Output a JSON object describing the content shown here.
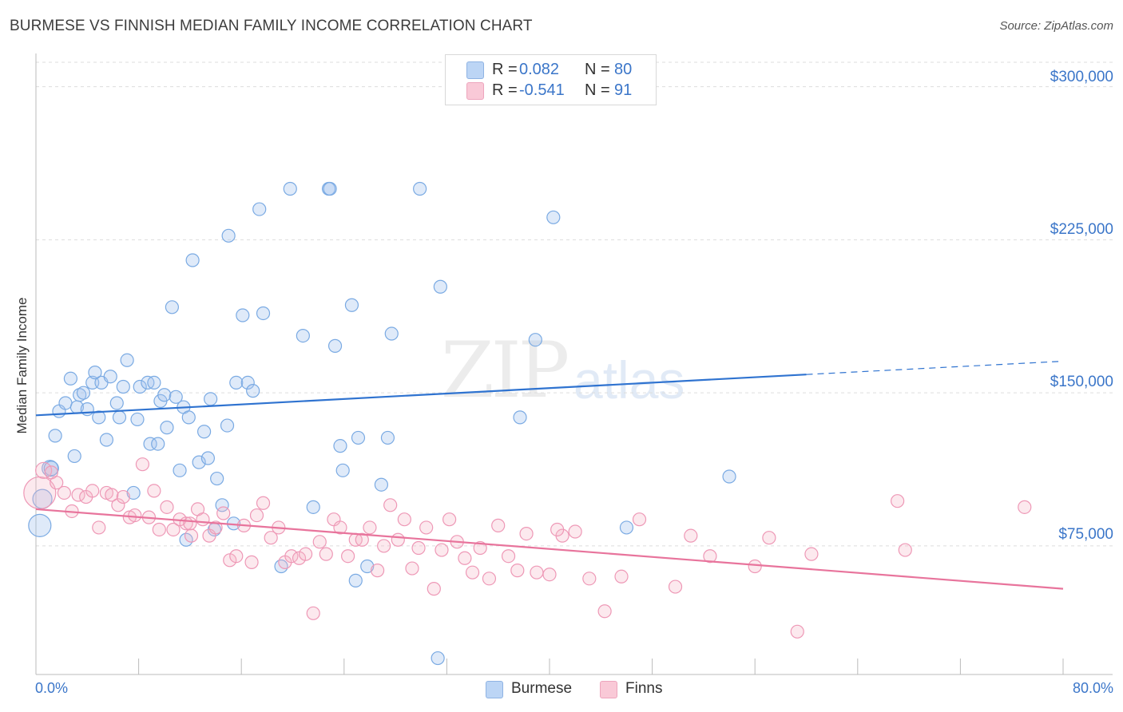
{
  "title": "BURMESE VS FINNISH MEDIAN FAMILY INCOME CORRELATION CHART",
  "source": "Source: ZipAtlas.com",
  "watermark": {
    "zip": "ZIP",
    "atlas": "atlas"
  },
  "legend": {
    "rows": [
      {
        "label": "R =",
        "r": "0.082",
        "n_label": "N =",
        "n": "80",
        "color": "#a9c8f0"
      },
      {
        "label": "R =",
        "r": "-0.541",
        "n_label": "N =",
        "n": "91",
        "color": "#f6b6c8"
      }
    ]
  },
  "bottom_legend": [
    {
      "name": "Burmese",
      "color": "#a9c8f0"
    },
    {
      "name": "Finns",
      "color": "#f6b6c8"
    }
  ],
  "chart_data": {
    "type": "scatter",
    "title": "BURMESE VS FINNISH MEDIAN FAMILY INCOME CORRELATION CHART",
    "xlabel": "",
    "ylabel": "Median Family Income",
    "xlim": [
      0,
      80
    ],
    "ylim": [
      12000,
      312000
    ],
    "x_tick_labels": [
      "0.0%",
      "80.0%"
    ],
    "y_ticks": [
      75000,
      150000,
      225000,
      300000
    ],
    "y_tick_labels": [
      "$75,000",
      "$150,000",
      "$225,000",
      "$300,000"
    ],
    "colors": {
      "burmese": "#6fa3e0",
      "finns": "#ee8fb0",
      "burmese_line": "#2f73d0",
      "finns_line": "#e8749c"
    },
    "series": [
      {
        "name": "Burmese",
        "r": 0.082,
        "n": 80,
        "trend": {
          "x0": 0,
          "y0": 139000,
          "x1": 60,
          "y1": 159000,
          "dash_to_x": 80,
          "dash_to_y": 165500
        },
        "points": [
          [
            0.3,
            85000,
            14
          ],
          [
            0.5,
            98000,
            12
          ],
          [
            1.1,
            113000,
            10
          ],
          [
            1.2,
            113000,
            9
          ],
          [
            1.5,
            129000,
            8
          ],
          [
            1.8,
            141000,
            8
          ],
          [
            2.3,
            145000,
            8
          ],
          [
            2.7,
            157000,
            8
          ],
          [
            3.0,
            119000,
            8
          ],
          [
            3.2,
            143000,
            8
          ],
          [
            3.4,
            149000,
            8
          ],
          [
            3.7,
            150000,
            8
          ],
          [
            4.0,
            142000,
            8
          ],
          [
            4.4,
            155000,
            8
          ],
          [
            4.6,
            160000,
            8
          ],
          [
            4.9,
            138000,
            8
          ],
          [
            5.1,
            155000,
            8
          ],
          [
            5.5,
            127000,
            8
          ],
          [
            5.8,
            158000,
            8
          ],
          [
            6.3,
            145000,
            8
          ],
          [
            6.5,
            138000,
            8
          ],
          [
            6.8,
            153000,
            8
          ],
          [
            7.1,
            166000,
            8
          ],
          [
            7.6,
            101000,
            8
          ],
          [
            7.9,
            137000,
            8
          ],
          [
            8.1,
            153000,
            8
          ],
          [
            8.7,
            155000,
            8
          ],
          [
            8.9,
            125000,
            8
          ],
          [
            9.2,
            155000,
            8
          ],
          [
            9.5,
            125000,
            8
          ],
          [
            9.7,
            146000,
            8
          ],
          [
            10.0,
            149000,
            8
          ],
          [
            10.2,
            133000,
            8
          ],
          [
            10.6,
            192000,
            8
          ],
          [
            10.9,
            148000,
            8
          ],
          [
            11.2,
            112000,
            8
          ],
          [
            11.5,
            143000,
            8
          ],
          [
            11.7,
            78000,
            8
          ],
          [
            11.9,
            138000,
            8
          ],
          [
            12.2,
            215000,
            8
          ],
          [
            12.7,
            116000,
            8
          ],
          [
            13.1,
            131000,
            8
          ],
          [
            13.4,
            118000,
            8
          ],
          [
            13.6,
            147000,
            8
          ],
          [
            13.9,
            83000,
            8
          ],
          [
            14.1,
            108000,
            8
          ],
          [
            14.5,
            95000,
            8
          ],
          [
            14.9,
            134000,
            8
          ],
          [
            15.0,
            227000,
            8
          ],
          [
            15.4,
            86000,
            8
          ],
          [
            15.6,
            155000,
            8
          ],
          [
            16.1,
            188000,
            8
          ],
          [
            16.5,
            155000,
            8
          ],
          [
            16.9,
            151000,
            8
          ],
          [
            17.4,
            240000,
            8
          ],
          [
            17.7,
            189000,
            8
          ],
          [
            19.1,
            65000,
            8
          ],
          [
            19.8,
            250000,
            8
          ],
          [
            20.8,
            178000,
            8
          ],
          [
            21.6,
            94000,
            8
          ],
          [
            22.8,
            250000,
            8
          ],
          [
            22.9,
            250000,
            8
          ],
          [
            23.3,
            173000,
            8
          ],
          [
            23.7,
            124000,
            8
          ],
          [
            23.9,
            112000,
            8
          ],
          [
            24.6,
            193000,
            8
          ],
          [
            24.9,
            58000,
            8
          ],
          [
            25.1,
            128000,
            8
          ],
          [
            25.8,
            65000,
            8
          ],
          [
            26.9,
            105000,
            8
          ],
          [
            27.4,
            128000,
            8
          ],
          [
            27.7,
            179000,
            8
          ],
          [
            29.9,
            250000,
            8
          ],
          [
            31.3,
            20000,
            8
          ],
          [
            31.5,
            202000,
            8
          ],
          [
            37.7,
            138000,
            8
          ],
          [
            38.9,
            176000,
            8
          ],
          [
            40.3,
            236000,
            8
          ],
          [
            46.0,
            84000,
            8
          ],
          [
            54.0,
            109000,
            8
          ]
        ]
      },
      {
        "name": "Finns",
        "r": -0.541,
        "n": 91,
        "trend": {
          "x0": 0,
          "y0": 93000,
          "x1": 80,
          "y1": 54000
        },
        "points": [
          [
            0.3,
            101000,
            20
          ],
          [
            0.6,
            112000,
            10
          ],
          [
            1.2,
            111000,
            8
          ],
          [
            1.6,
            106000,
            8
          ],
          [
            2.2,
            101000,
            8
          ],
          [
            2.8,
            92000,
            8
          ],
          [
            3.3,
            100000,
            8
          ],
          [
            3.9,
            99000,
            8
          ],
          [
            4.4,
            102000,
            8
          ],
          [
            4.9,
            84000,
            8
          ],
          [
            5.5,
            101000,
            8
          ],
          [
            5.9,
            100000,
            8
          ],
          [
            6.4,
            95000,
            8
          ],
          [
            6.8,
            99000,
            8
          ],
          [
            7.3,
            89000,
            8
          ],
          [
            7.7,
            90000,
            8
          ],
          [
            8.3,
            115000,
            8
          ],
          [
            8.8,
            89000,
            8
          ],
          [
            9.2,
            102000,
            8
          ],
          [
            9.6,
            83000,
            8
          ],
          [
            10.2,
            94000,
            8
          ],
          [
            10.7,
            83000,
            8
          ],
          [
            11.2,
            88000,
            8
          ],
          [
            11.7,
            86000,
            8
          ],
          [
            12.1,
            80000,
            8
          ],
          [
            12.6,
            93000,
            8
          ],
          [
            13.0,
            88000,
            8
          ],
          [
            13.5,
            80000,
            8
          ],
          [
            14.0,
            84000,
            8
          ],
          [
            14.6,
            91000,
            8
          ],
          [
            15.1,
            68000,
            8
          ],
          [
            15.6,
            70000,
            8
          ],
          [
            16.2,
            85000,
            8
          ],
          [
            16.8,
            67000,
            8
          ],
          [
            17.2,
            90000,
            8
          ],
          [
            17.7,
            96000,
            8
          ],
          [
            18.3,
            79000,
            8
          ],
          [
            18.9,
            84000,
            8
          ],
          [
            19.4,
            67000,
            8
          ],
          [
            19.9,
            70000,
            8
          ],
          [
            20.5,
            69000,
            8
          ],
          [
            21.0,
            71000,
            8
          ],
          [
            21.6,
            42000,
            8
          ],
          [
            22.1,
            77000,
            8
          ],
          [
            22.6,
            71000,
            8
          ],
          [
            23.2,
            88000,
            8
          ],
          [
            23.7,
            84000,
            8
          ],
          [
            24.3,
            70000,
            8
          ],
          [
            24.9,
            78000,
            8
          ],
          [
            25.4,
            78000,
            8
          ],
          [
            26.0,
            84000,
            8
          ],
          [
            26.6,
            63000,
            8
          ],
          [
            27.1,
            75000,
            8
          ],
          [
            27.6,
            95000,
            8
          ],
          [
            28.2,
            78000,
            8
          ],
          [
            28.7,
            88000,
            8
          ],
          [
            29.3,
            64000,
            8
          ],
          [
            29.8,
            74000,
            8
          ],
          [
            30.4,
            84000,
            8
          ],
          [
            31.0,
            54000,
            8
          ],
          [
            31.6,
            73000,
            8
          ],
          [
            32.2,
            88000,
            8
          ],
          [
            32.8,
            77000,
            8
          ],
          [
            33.4,
            69000,
            8
          ],
          [
            34.0,
            62000,
            8
          ],
          [
            34.6,
            74000,
            8
          ],
          [
            35.3,
            59000,
            8
          ],
          [
            36.0,
            85000,
            8
          ],
          [
            36.8,
            70000,
            8
          ],
          [
            37.5,
            63000,
            8
          ],
          [
            38.2,
            81000,
            8
          ],
          [
            39.0,
            62000,
            8
          ],
          [
            40.0,
            61000,
            8
          ],
          [
            41.0,
            80000,
            8
          ],
          [
            42.0,
            82000,
            8
          ],
          [
            43.1,
            59000,
            8
          ],
          [
            44.3,
            43000,
            8
          ],
          [
            45.6,
            60000,
            8
          ],
          [
            47.0,
            88000,
            8
          ],
          [
            49.8,
            55000,
            8
          ],
          [
            51.0,
            80000,
            8
          ],
          [
            52.5,
            70000,
            8
          ],
          [
            56.0,
            65000,
            8
          ],
          [
            57.1,
            79000,
            8
          ],
          [
            59.3,
            33000,
            8
          ],
          [
            60.4,
            71000,
            8
          ],
          [
            67.1,
            97000,
            8
          ],
          [
            67.7,
            73000,
            8
          ],
          [
            77.0,
            94000,
            8
          ],
          [
            40.6,
            83000,
            8
          ],
          [
            12.0,
            86000,
            8
          ]
        ]
      }
    ]
  }
}
